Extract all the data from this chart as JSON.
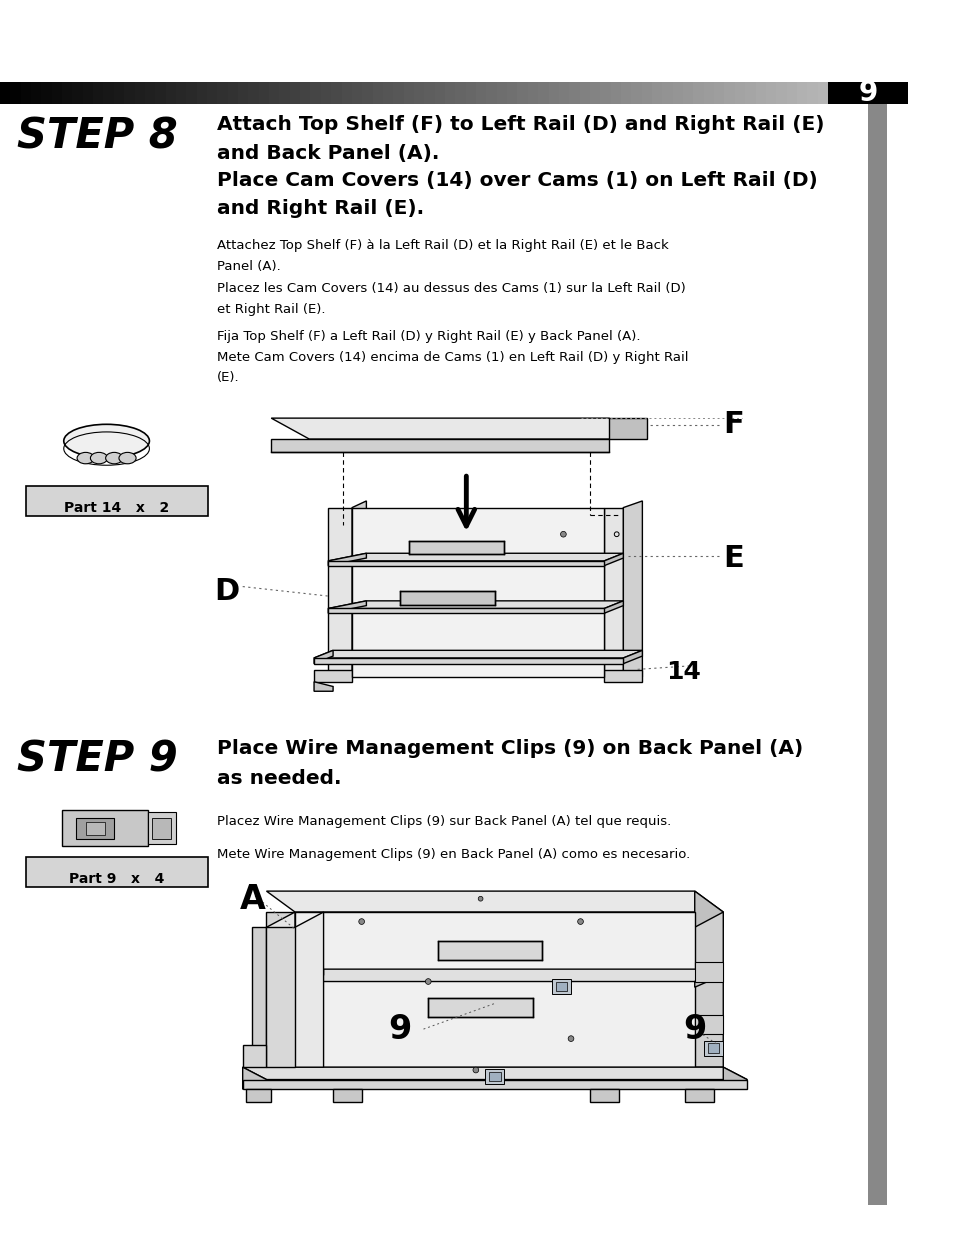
{
  "bg_color": "#ffffff",
  "page_width": 9.54,
  "page_height": 12.35,
  "page_number": "9",
  "step8_label": "STEP 8",
  "step8_en_line1": "Attach Top Shelf (F) to Left Rail (D) and Right Rail (E)",
  "step8_en_line2": "and Back Panel (A).",
  "step8_en_line3": "Place Cam Covers (14) over Cams (1) on Left Rail (D)",
  "step8_en_line4": "and Right Rail (E).",
  "step8_fr_line1": "Attachez Top Shelf (F) à la Left Rail (D) et la Right Rail (E) et le Back",
  "step8_fr_line2": "Panel (A).",
  "step8_fr_line3": "Placez les Cam Covers (14) au dessus des Cams (1) sur la Left Rail (D)",
  "step8_fr_line4": "et Right Rail (E).",
  "step8_es_line1": "Fija Top Shelf (F) a Left Rail (D) y Right Rail (E) y Back Panel (A).",
  "step8_es_line2": "Mete Cam Covers (14) encima de Cams (1) en Left Rail (D) y Right Rail",
  "step8_es_line3": "(E).",
  "part14_label": "Part 14   x   2",
  "step9_label": "STEP 9",
  "step9_en_line1": "Place Wire Management Clips (9) on Back Panel (A)",
  "step9_en_line2": "as needed.",
  "step9_fr_line1": "Placez Wire Management Clips (9) sur Back Panel (A) tel que requis.",
  "step9_es_line1": "Mete Wire Management Clips (9) en Back Panel (A) como es necesario.",
  "part9_label": "Part 9   x   4"
}
